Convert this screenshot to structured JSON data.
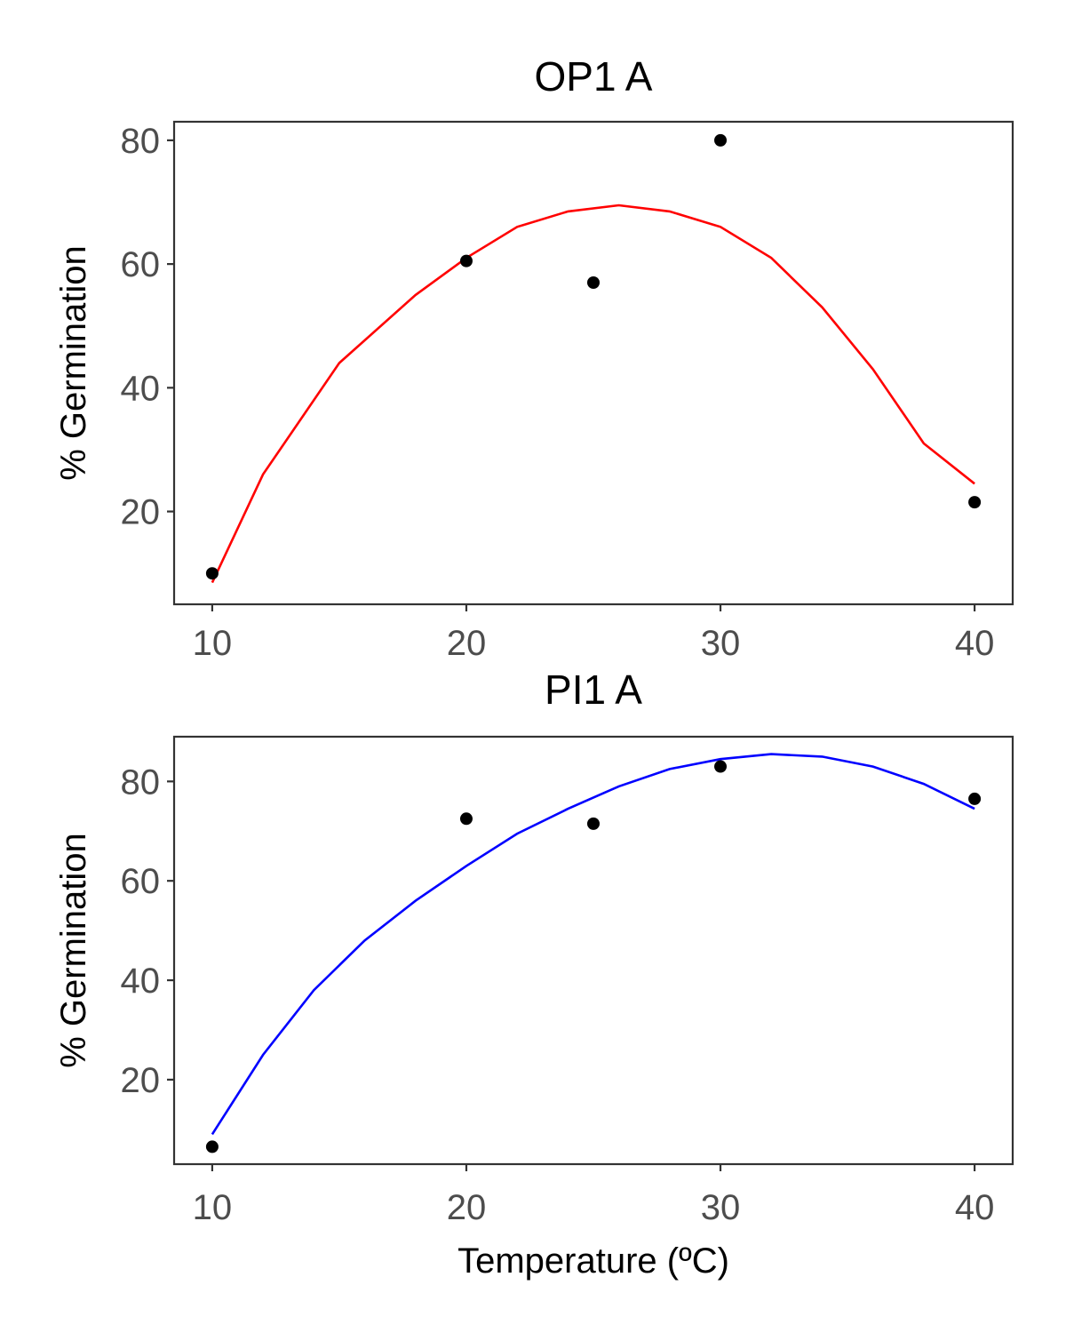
{
  "chart_data": [
    {
      "type": "scatter",
      "title": "OP1 A",
      "xlabel": "",
      "ylabel": "% Germination",
      "xlim": [
        8.5,
        41.5
      ],
      "ylim": [
        5,
        83
      ],
      "xticks": [
        10,
        20,
        30,
        40
      ],
      "yticks": [
        20,
        40,
        60,
        80
      ],
      "xtick_labels": [
        "10",
        "20",
        "30",
        "40"
      ],
      "ytick_labels": [
        "20",
        "40",
        "60",
        "80"
      ],
      "grid": false,
      "series": [
        {
          "points": {
            "x": [
              10,
              20,
              25,
              30,
              40
            ],
            "y": [
              10,
              60.5,
              57,
              80,
              21.5
            ]
          },
          "fit": {
            "x": [
              10,
              12,
              15,
              18,
              20,
              22,
              24,
              26,
              28,
              30,
              32,
              34,
              36,
              38,
              40
            ],
            "y": [
              8.5,
              26,
              44,
              55,
              61,
              66,
              68.5,
              69.5,
              68.5,
              66,
              61,
              53,
              43,
              31,
              24.5
            ]
          },
          "color": "#ff0000"
        }
      ]
    },
    {
      "type": "scatter",
      "title": "PI1 A",
      "xlabel": "Temperature (ºC)",
      "ylabel": "% Germination",
      "xlim": [
        8.5,
        41.5
      ],
      "ylim": [
        3,
        89
      ],
      "xticks": [
        10,
        20,
        30,
        40
      ],
      "yticks": [
        20,
        40,
        60,
        80
      ],
      "xtick_labels": [
        "10",
        "20",
        "30",
        "40"
      ],
      "ytick_labels": [
        "20",
        "40",
        "60",
        "80"
      ],
      "grid": false,
      "series": [
        {
          "points": {
            "x": [
              10,
              20,
              25,
              30,
              40
            ],
            "y": [
              6.5,
              72.5,
              71.5,
              83,
              76.5
            ]
          },
          "fit": {
            "x": [
              10,
              12,
              14,
              16,
              18,
              20,
              22,
              24,
              26,
              28,
              30,
              32,
              34,
              36,
              38,
              40
            ],
            "y": [
              9,
              25,
              38,
              48,
              56,
              63,
              69.5,
              74.5,
              79,
              82.5,
              84.5,
              85.5,
              85,
              83,
              79.5,
              74.5
            ]
          },
          "color": "#0000ff"
        }
      ]
    }
  ]
}
